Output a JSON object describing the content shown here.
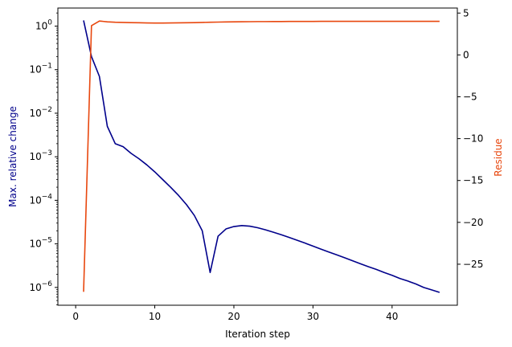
{
  "chart_data": {
    "type": "line",
    "xlabel": "Iteration step",
    "xlim": [
      -2.25,
      48.25
    ],
    "xticks": [
      0,
      10,
      20,
      30,
      40
    ],
    "y_left": {
      "label": "Max. relative change",
      "scale": "log",
      "lim": [
        3.9e-07,
        2.6
      ],
      "ticks": [
        1e-06,
        1e-05,
        0.0001,
        0.001,
        0.01,
        0.1,
        1
      ],
      "tick_labels": [
        {
          "base": "10",
          "exp": "−6"
        },
        {
          "base": "10",
          "exp": "−5"
        },
        {
          "base": "10",
          "exp": "−4"
        },
        {
          "base": "10",
          "exp": "−3"
        },
        {
          "base": "10",
          "exp": "−2"
        },
        {
          "base": "10",
          "exp": "−1"
        },
        {
          "base": "10",
          "exp": "0"
        }
      ],
      "color": "#00008B"
    },
    "y_right": {
      "label": "Residue",
      "scale": "linear",
      "lim": [
        -29.9,
        5.6
      ],
      "ticks": [
        5,
        0,
        -5,
        -10,
        -15,
        -20,
        -25
      ],
      "tick_labels": [
        "5",
        "0",
        "−5",
        "−10",
        "−15",
        "−20",
        "−25"
      ],
      "color": "#E8470E"
    },
    "series": [
      {
        "axis": "left",
        "color": "#00008B",
        "x": [
          1,
          2,
          3,
          4,
          5,
          6,
          7,
          8,
          9,
          10,
          11,
          12,
          13,
          14,
          15,
          16,
          17,
          18,
          19,
          20,
          21,
          22,
          23,
          24,
          25,
          26,
          27,
          28,
          29,
          30,
          31,
          32,
          33,
          34,
          35,
          36,
          37,
          38,
          39,
          40,
          41,
          42,
          43,
          44,
          45,
          46
        ],
        "y": [
          1.35,
          0.2,
          0.07,
          0.005,
          0.002,
          0.0017,
          0.0012,
          0.0009,
          0.00065,
          0.00045,
          0.0003,
          0.0002,
          0.00013,
          8e-05,
          4.5e-05,
          2e-05,
          2.2e-06,
          1.5e-05,
          2.2e-05,
          2.5e-05,
          2.63e-05,
          2.55e-05,
          2.35e-05,
          2.1e-05,
          1.85e-05,
          1.62e-05,
          1.4e-05,
          1.21e-05,
          1.04e-05,
          8.9e-06,
          7.6e-06,
          6.5e-06,
          5.6e-06,
          4.8e-06,
          4.1e-06,
          3.5e-06,
          3e-06,
          2.6e-06,
          2.2e-06,
          1.9e-06,
          1.6e-06,
          1.4e-06,
          1.2e-06,
          1e-06,
          8.8e-07,
          7.7e-07
        ]
      },
      {
        "axis": "right",
        "color": "#E8470E",
        "x": [
          1,
          2,
          3,
          4,
          5,
          6,
          7,
          8,
          9,
          10,
          11,
          12,
          13,
          14,
          15,
          16,
          17,
          18,
          19,
          20,
          21,
          22,
          23,
          24,
          25,
          26,
          27,
          28,
          29,
          30,
          31,
          32,
          33,
          34,
          35,
          36,
          37,
          38,
          39,
          40,
          41,
          42,
          43,
          44,
          45,
          46
        ],
        "y": [
          -28.3,
          3.5,
          4.05,
          3.95,
          3.9,
          3.88,
          3.86,
          3.84,
          3.82,
          3.81,
          3.81,
          3.82,
          3.83,
          3.84,
          3.86,
          3.88,
          3.9,
          3.92,
          3.94,
          3.95,
          3.96,
          3.97,
          3.98,
          3.98,
          3.99,
          3.99,
          4.0,
          4.0,
          4.0,
          4.0,
          4.01,
          4.01,
          4.01,
          4.01,
          4.01,
          4.01,
          4.01,
          4.01,
          4.01,
          4.01,
          4.01,
          4.01,
          4.01,
          4.01,
          4.01,
          4.01
        ]
      }
    ]
  }
}
